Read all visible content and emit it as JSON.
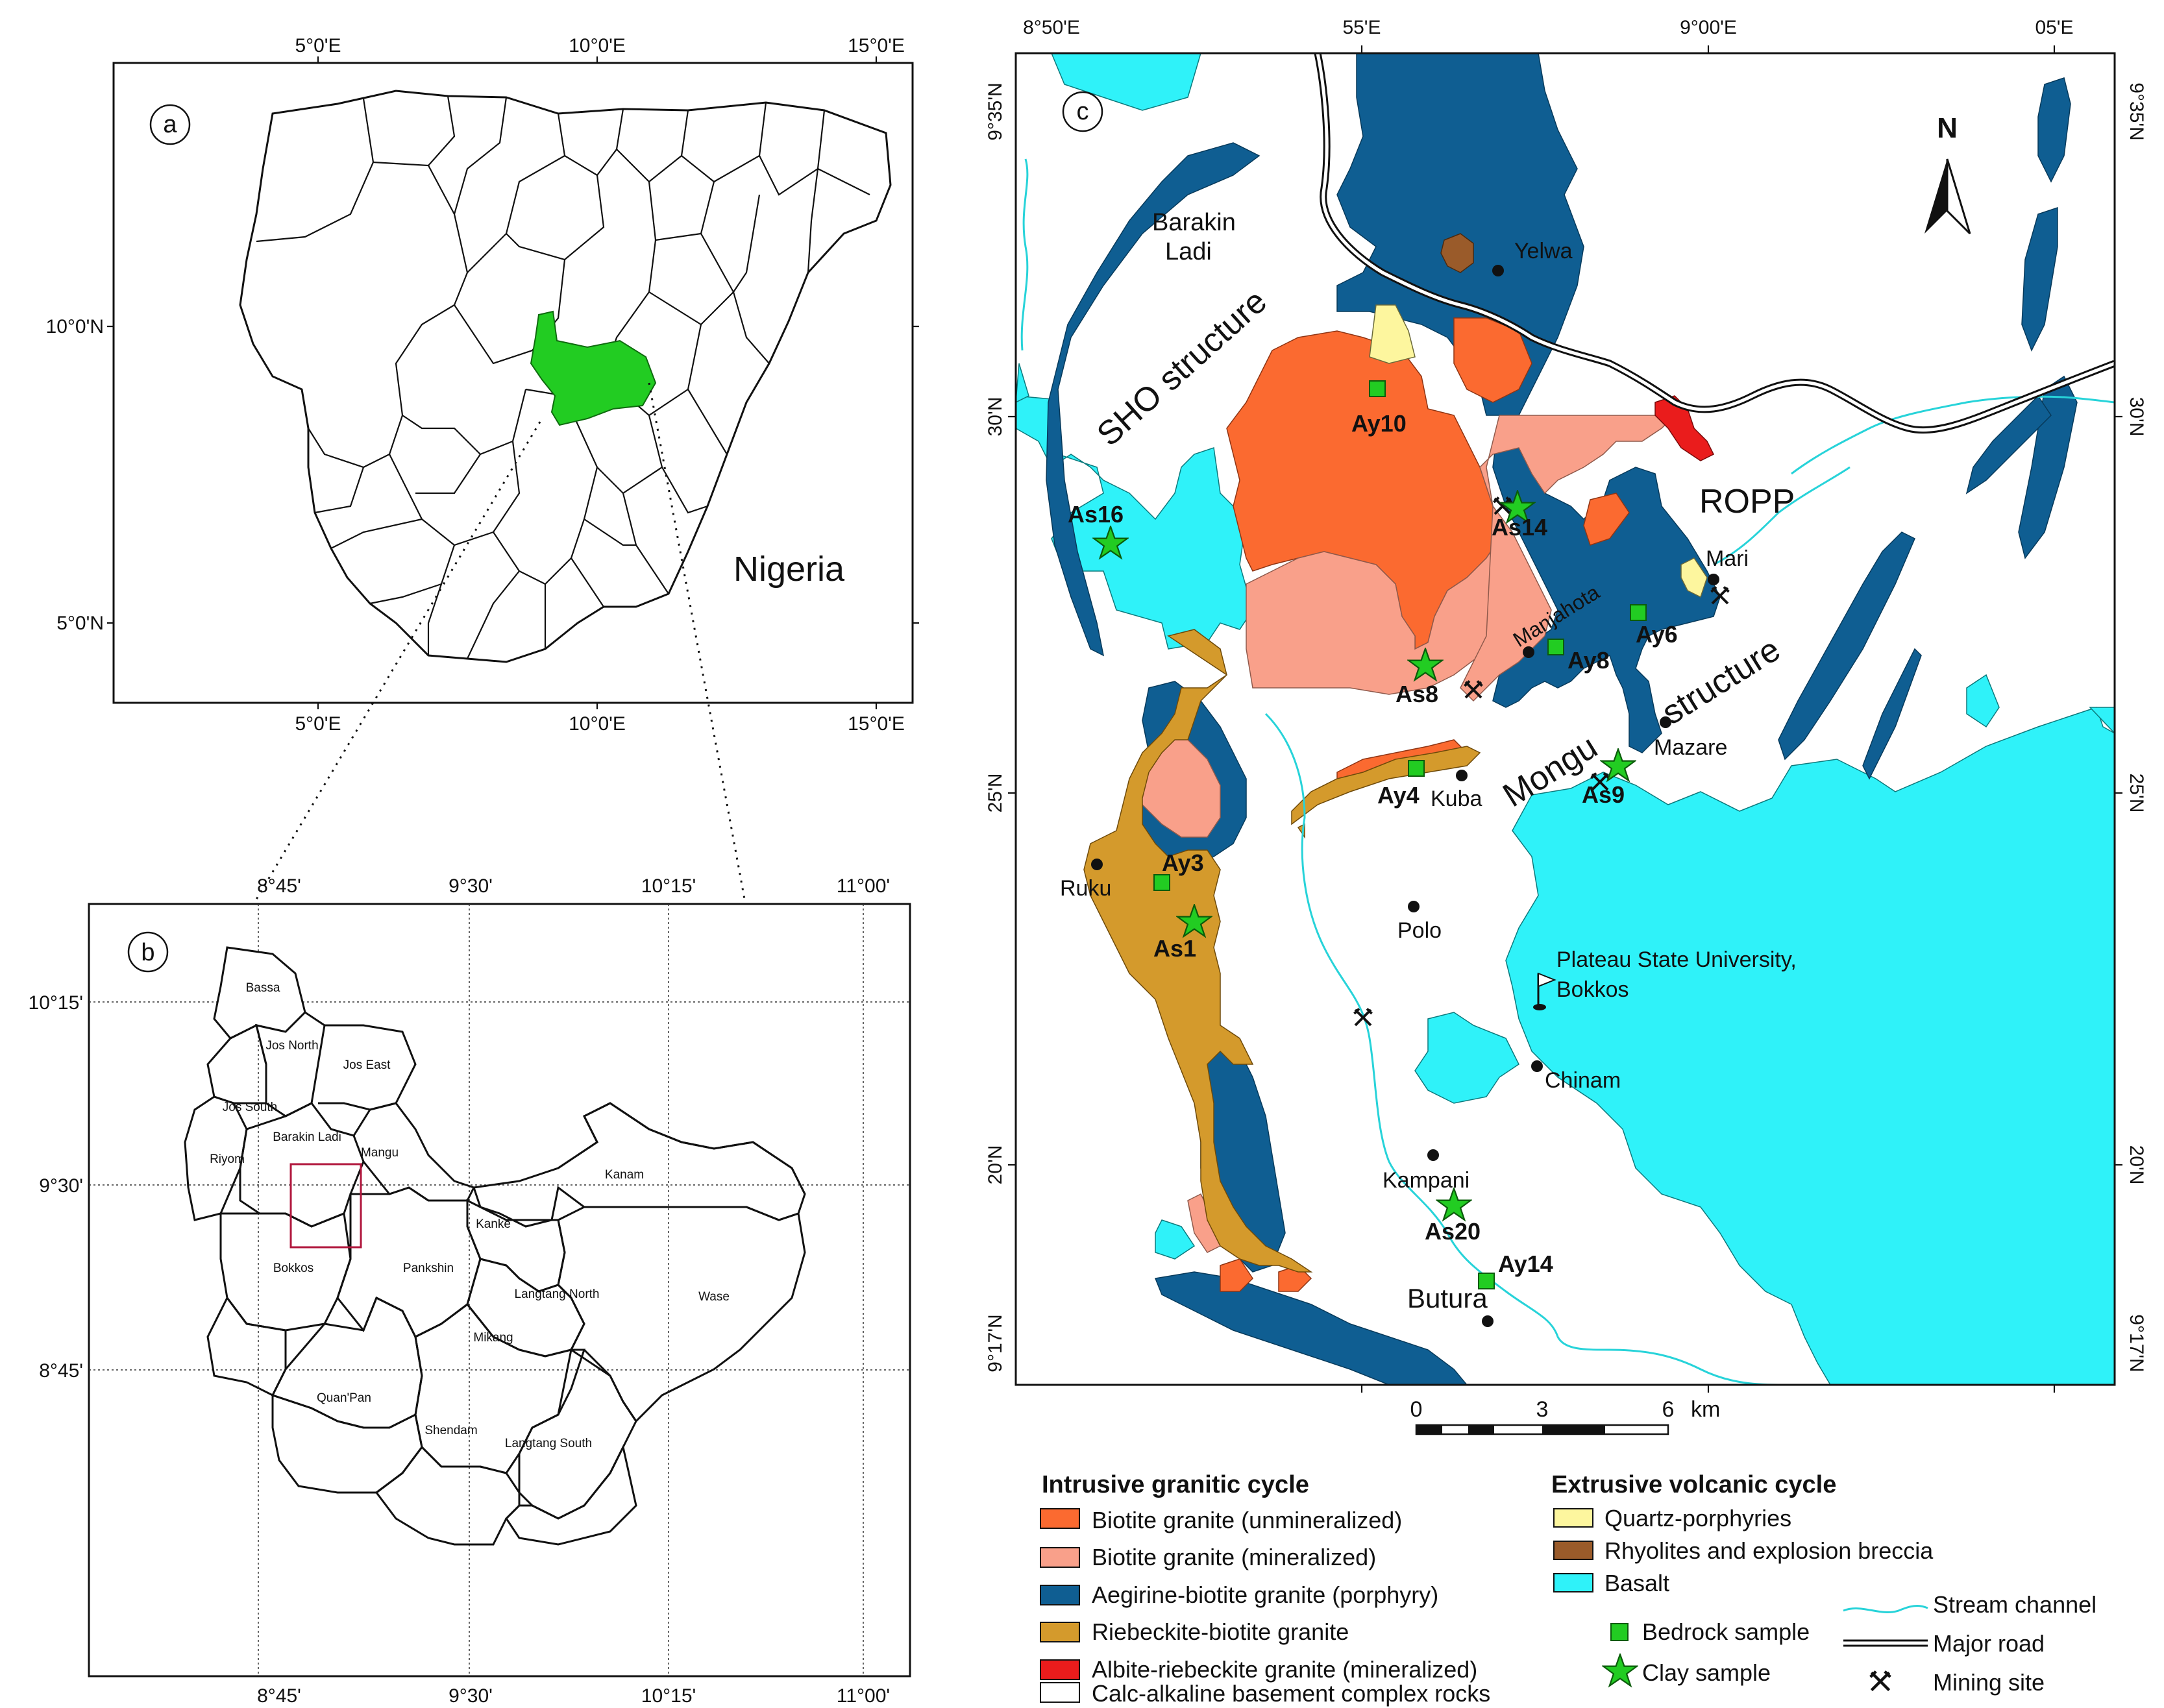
{
  "panel_a": {
    "letter": "a",
    "country": "Nigeria",
    "lon_ticks": [
      "5°0'E",
      "10°0'E",
      "15°0'E"
    ],
    "lat_ticks": [
      "10°0'N",
      "5°0'N"
    ],
    "highlight_color": "#22cc22"
  },
  "panel_b": {
    "letter": "b",
    "lon_ticks": [
      "8°45'",
      "9°30'",
      "10°15'",
      "11°00'"
    ],
    "lat_ticks": [
      "10°15'",
      "9°30'",
      "8°45'"
    ],
    "lgas": [
      "Bassa",
      "Jos North",
      "Jos East",
      "Jos South",
      "Riyom",
      "Barakin Ladi",
      "Mangu",
      "Kanam",
      "Kanke",
      "Bokkos",
      "Pankshin",
      "Langtang North",
      "Wase",
      "Mikang",
      "Quan'Pan",
      "Shendam",
      "Langtang South"
    ],
    "frame_color": "#b0163c"
  },
  "panel_c": {
    "letter": "c",
    "lon_ticks": [
      "8°50'E",
      "55'E",
      "9°00'E",
      "05'E"
    ],
    "lat_ticks": [
      "9°35'N",
      "30'N",
      "25'N",
      "20'N",
      "9°17'N"
    ],
    "north": "N",
    "places": [
      "Barakin Ladi",
      "Yelwa",
      "Mari",
      "Manjahota",
      "Mazare",
      "Kuba",
      "Ruku",
      "Polo",
      "Plateau State University, Bokkos",
      "Chinam",
      "Kampani",
      "Butura"
    ],
    "structures": [
      "SHO structure",
      "Mongu",
      "structure",
      "ROPP"
    ],
    "bedrock_samples": [
      "Ay10",
      "Ay6",
      "Ay8",
      "Ay4",
      "Ay3",
      "Ay14"
    ],
    "clay_samples": [
      "As16",
      "As14",
      "As8",
      "As9",
      "As1",
      "As20"
    ],
    "scale": {
      "ticks": [
        "0",
        "3",
        "6"
      ],
      "unit": "km"
    }
  },
  "legend": {
    "intrusive_title": "Intrusive granitic cycle",
    "intrusive": [
      {
        "label": "Biotite granite (unmineralized)",
        "color": "#fb6a30"
      },
      {
        "label": "Biotite granite (mineralized)",
        "color": "#f9a08a"
      },
      {
        "label": "Aegirine-biotite granite (porphyry)",
        "color": "#0f5e92"
      },
      {
        "label": "Riebeckite-biotite granite",
        "color": "#d49a2c"
      },
      {
        "label": "Albite-riebeckite granite (mineralized)",
        "color": "#ea1c1c"
      },
      {
        "label": "Calc-alkaline basement complex rocks",
        "color": "#ffffff"
      }
    ],
    "extrusive_title": "Extrusive volcanic cycle",
    "extrusive": [
      {
        "label": "Quartz-porphyries",
        "color": "#fdf69e"
      },
      {
        "label": "Rhyolites and explosion breccia",
        "color": "#9a5b2a"
      },
      {
        "label": "Basalt",
        "color": "#2ff2f9"
      }
    ],
    "symbols": {
      "bedrock": "Bedrock sample",
      "clay": "Clay sample",
      "stream": "Stream channel",
      "road": "Major road",
      "mining": "Mining site"
    }
  }
}
